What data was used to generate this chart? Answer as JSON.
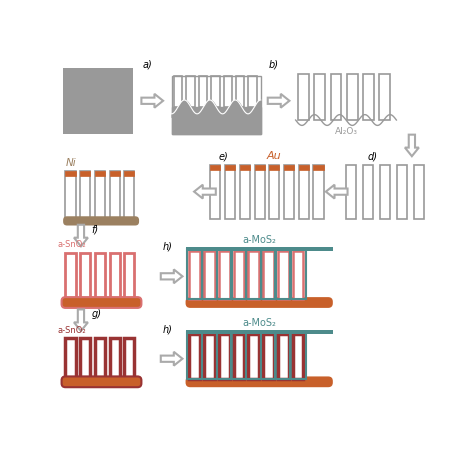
{
  "bg": "#ffffff",
  "gray": "#999999",
  "gray_dark": "#888888",
  "orange": "#c8602a",
  "teal": "#4d8b8b",
  "pink": "#d97070",
  "darkred": "#993333",
  "ni_color": "#9b8060",
  "label_color": "#222222",
  "figsize": [
    4.74,
    4.74
  ],
  "dpi": 100,
  "label_a": "a)",
  "label_b": "b)",
  "label_d": "d)",
  "label_e": "e)",
  "label_f": "f)",
  "label_g": "g)",
  "label_h": "h)",
  "text_Ni": "Ni",
  "text_Au": "Au",
  "text_Al2O3": "Al₂O₃",
  "text_SnO2": "a-SnO₂",
  "text_MoS2": "a-MoS₂"
}
